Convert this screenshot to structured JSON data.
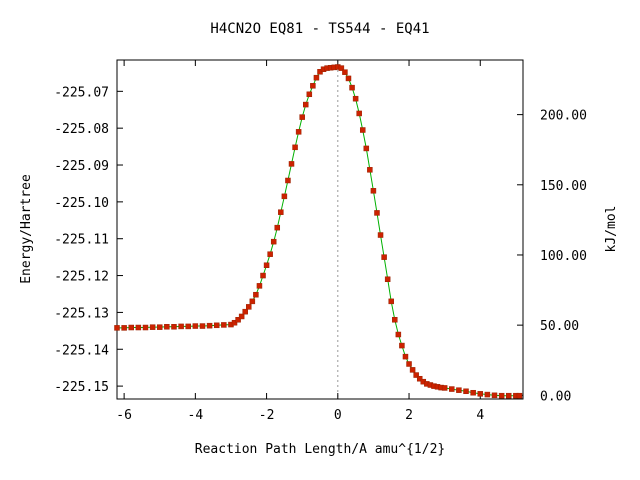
{
  "chart_data": {
    "type": "line",
    "title": "H4CN2O   EQ81 - TS544 - EQ41",
    "xlabel": "Reaction Path Length/A amu^{1/2}",
    "ylabel": "Energy/Hartree",
    "y2label": "kJ/mol",
    "xlim": [
      -6.2,
      5.2
    ],
    "ylim": [
      -225.1535,
      -225.0615
    ],
    "xticks": [
      -6,
      -4,
      -2,
      0,
      2,
      4
    ],
    "xtick_labels": [
      "-6",
      "-4",
      "-2",
      "0",
      "2",
      "4"
    ],
    "yticks": [
      -225.07,
      -225.08,
      -225.09,
      -225.1,
      -225.11,
      -225.12,
      -225.13,
      -225.14,
      -225.15
    ],
    "ytick_labels": [
      "-225.07",
      "-225.08",
      "-225.09",
      "-225.10",
      "-225.11",
      "-225.12",
      "-225.13",
      "-225.14",
      "-225.15"
    ],
    "y2ticks": [
      0,
      50,
      100,
      150,
      200
    ],
    "y2tick_labels": [
      "0.00",
      "50.00",
      "100.00",
      "150.00",
      "200.00"
    ],
    "y2_zero_hartree": -225.1525,
    "hartree_to_kjmol": 2625.5,
    "ts_marker_x": 0,
    "grid": false,
    "line_color": "#00b000",
    "point_color": "#cc2200",
    "x": [
      -6.2,
      -6.0,
      -5.8,
      -5.6,
      -5.4,
      -5.2,
      -5.0,
      -4.8,
      -4.6,
      -4.4,
      -4.2,
      -4.0,
      -3.8,
      -3.6,
      -3.4,
      -3.2,
      -3.0,
      -2.9,
      -2.8,
      -2.7,
      -2.6,
      -2.5,
      -2.4,
      -2.3,
      -2.2,
      -2.1,
      -2.0,
      -1.9,
      -1.8,
      -1.7,
      -1.6,
      -1.5,
      -1.4,
      -1.3,
      -1.2,
      -1.1,
      -1.0,
      -0.9,
      -0.8,
      -0.7,
      -0.6,
      -0.5,
      -0.4,
      -0.3,
      -0.2,
      -0.1,
      0.0,
      0.1,
      0.2,
      0.3,
      0.4,
      0.5,
      0.6,
      0.7,
      0.8,
      0.9,
      1.0,
      1.1,
      1.2,
      1.3,
      1.4,
      1.5,
      1.6,
      1.7,
      1.8,
      1.9,
      2.0,
      2.1,
      2.2,
      2.3,
      2.4,
      2.5,
      2.6,
      2.7,
      2.8,
      2.9,
      3.0,
      3.2,
      3.4,
      3.6,
      3.8,
      4.0,
      4.2,
      4.4,
      4.6,
      4.8,
      5.0,
      5.1
    ],
    "y": [
      -225.1342,
      -225.1342,
      -225.1341,
      -225.1341,
      -225.1341,
      -225.134,
      -225.134,
      -225.1339,
      -225.1339,
      -225.1338,
      -225.1338,
      -225.1337,
      -225.1337,
      -225.1336,
      -225.1335,
      -225.1334,
      -225.1333,
      -225.1328,
      -225.132,
      -225.1311,
      -225.1298,
      -225.1285,
      -225.127,
      -225.1252,
      -225.1228,
      -225.12,
      -225.1172,
      -225.1142,
      -225.1108,
      -225.107,
      -225.1028,
      -225.0985,
      -225.0942,
      -225.0897,
      -225.0852,
      -225.081,
      -225.077,
      -225.0736,
      -225.0708,
      -225.0685,
      -225.0663,
      -225.0647,
      -225.064,
      -225.0637,
      -225.0636,
      -225.0635,
      -225.0634,
      -225.0637,
      -225.0648,
      -225.0665,
      -225.069,
      -225.072,
      -225.076,
      -225.0805,
      -225.0855,
      -225.0913,
      -225.097,
      -225.103,
      -225.109,
      -225.115,
      -225.121,
      -225.127,
      -225.132,
      -225.136,
      -225.139,
      -225.142,
      -225.144,
      -225.1456,
      -225.147,
      -225.148,
      -225.1488,
      -225.1494,
      -225.1497,
      -225.15,
      -225.1502,
      -225.1504,
      -225.1505,
      -225.1508,
      -225.1511,
      -225.1514,
      -225.1518,
      -225.1521,
      -225.1523,
      -225.1525,
      -225.1526,
      -225.1526,
      -225.1526,
      -225.1526
    ]
  }
}
